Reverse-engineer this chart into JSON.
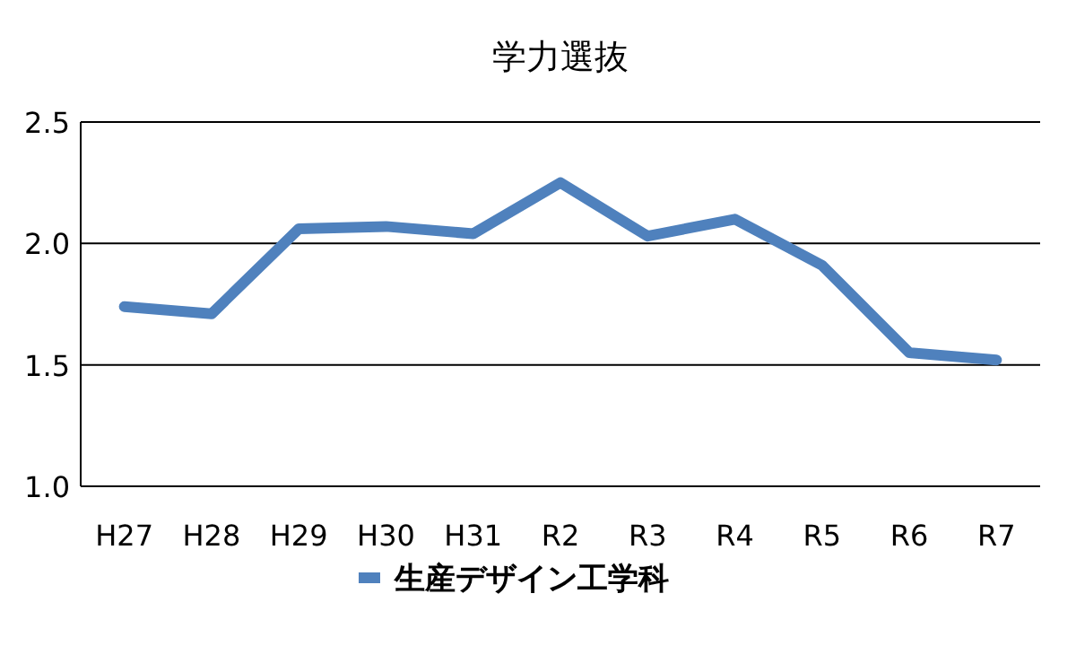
{
  "chart_data": {
    "type": "line",
    "title": "学力選抜",
    "categories": [
      "H27",
      "H28",
      "H29",
      "H30",
      "H31",
      "R2",
      "R3",
      "R4",
      "R5",
      "R6",
      "R7"
    ],
    "series": [
      {
        "name": "生産デザイン工学科",
        "color": "#4f81bd",
        "values": [
          1.74,
          1.71,
          2.06,
          2.07,
          2.04,
          2.25,
          2.03,
          2.1,
          1.91,
          1.55,
          1.52
        ]
      }
    ],
    "ylim": [
      1.0,
      2.5
    ],
    "yticks": [
      {
        "value": 1.0,
        "label": "1.0"
      },
      {
        "value": 1.5,
        "label": "1.5"
      },
      {
        "value": 2.0,
        "label": "2.0"
      },
      {
        "value": 2.5,
        "label": "2.5"
      }
    ],
    "grid": "y",
    "legend": "bottom",
    "marker": "none",
    "line_style": "solid"
  }
}
